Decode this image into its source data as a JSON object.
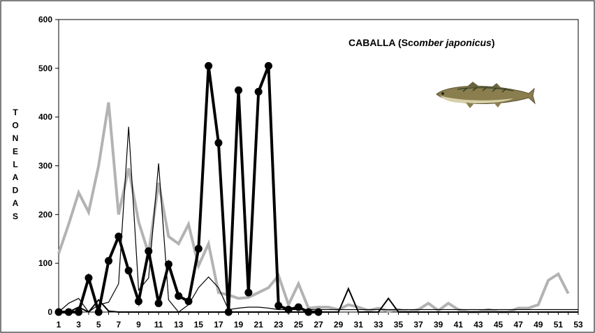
{
  "chart_data": {
    "type": "line",
    "title_plain": "CABALLA (Sco",
    "title_italic": "mber japonicus",
    "title_close": ")",
    "ylabel": "TONELADAS",
    "xlabel": "",
    "ylim": [
      0,
      600
    ],
    "yticks": [
      "0",
      "100",
      "200",
      "300",
      "400",
      "500",
      "600"
    ],
    "xticks": [
      "1",
      "3",
      "5",
      "7",
      "9",
      "11",
      "13",
      "15",
      "17",
      "19",
      "21",
      "23",
      "25",
      "27",
      "29",
      "31",
      "33",
      "35",
      "37",
      "39",
      "41",
      "43",
      "45",
      "47",
      "49",
      "51",
      "53"
    ],
    "x": [
      1,
      2,
      3,
      4,
      5,
      6,
      7,
      8,
      9,
      10,
      11,
      12,
      13,
      14,
      15,
      16,
      17,
      18,
      19,
      20,
      21,
      22,
      23,
      24,
      25,
      26,
      27,
      28,
      29,
      30,
      31,
      32,
      33,
      34,
      35,
      36,
      37,
      38,
      39,
      40,
      41,
      42,
      43,
      44,
      45,
      46,
      47,
      48,
      49,
      50,
      51,
      52,
      53
    ],
    "series": [
      {
        "color": "#b3b3b3",
        "width": 4,
        "markers": false,
        "values": [
          120,
          180,
          245,
          205,
          300,
          430,
          200,
          295,
          185,
          120,
          265,
          155,
          140,
          180,
          95,
          140,
          40,
          35,
          28,
          30,
          40,
          50,
          75,
          15,
          58,
          8,
          10,
          10,
          5,
          15,
          10,
          3,
          8,
          2,
          5,
          0,
          5,
          18,
          3,
          18,
          5,
          0,
          0,
          5,
          0,
          0,
          8,
          8,
          15,
          65,
          78,
          38,
          null
        ]
      },
      {
        "color": "#000000",
        "width": 1.2,
        "markers": false,
        "values": [
          0,
          18,
          28,
          0,
          15,
          20,
          58,
          380,
          45,
          70,
          305,
          25,
          0,
          15,
          50,
          72,
          50,
          5,
          8,
          10,
          10,
          8,
          5,
          5,
          5,
          5,
          5,
          5,
          5,
          5,
          5,
          5,
          5,
          5,
          5,
          5,
          5,
          5,
          5,
          5,
          5,
          5,
          5,
          5,
          5,
          5,
          5,
          5,
          5,
          5,
          5,
          5,
          5
        ]
      },
      {
        "color": "#000000",
        "width": 2,
        "markers": false,
        "values": [
          0,
          0,
          10,
          0,
          25,
          2,
          0,
          0,
          0,
          0,
          0,
          0,
          0,
          0,
          0,
          0,
          0,
          0,
          0,
          0,
          0,
          0,
          0,
          0,
          0,
          0,
          0,
          0,
          0,
          48,
          0,
          0,
          0,
          28,
          0,
          0,
          0,
          0,
          0,
          0,
          0,
          0,
          0,
          0,
          0,
          0,
          0,
          0,
          0,
          0,
          0,
          0,
          0
        ]
      },
      {
        "color": "#000000",
        "width": 4,
        "markers": true,
        "values": [
          0,
          0,
          0,
          70,
          0,
          105,
          155,
          85,
          22,
          125,
          18,
          98,
          33,
          22,
          130,
          505,
          347,
          0,
          455,
          40,
          452,
          505,
          13,
          5,
          10,
          0,
          0,
          null,
          null,
          null,
          null,
          null,
          null,
          null,
          null,
          null,
          null,
          null,
          null,
          null,
          null,
          null,
          null,
          null,
          null,
          null,
          null,
          null,
          null,
          null,
          null,
          null,
          null
        ]
      }
    ]
  },
  "fish_icon": "mackerel-fish-illustration"
}
